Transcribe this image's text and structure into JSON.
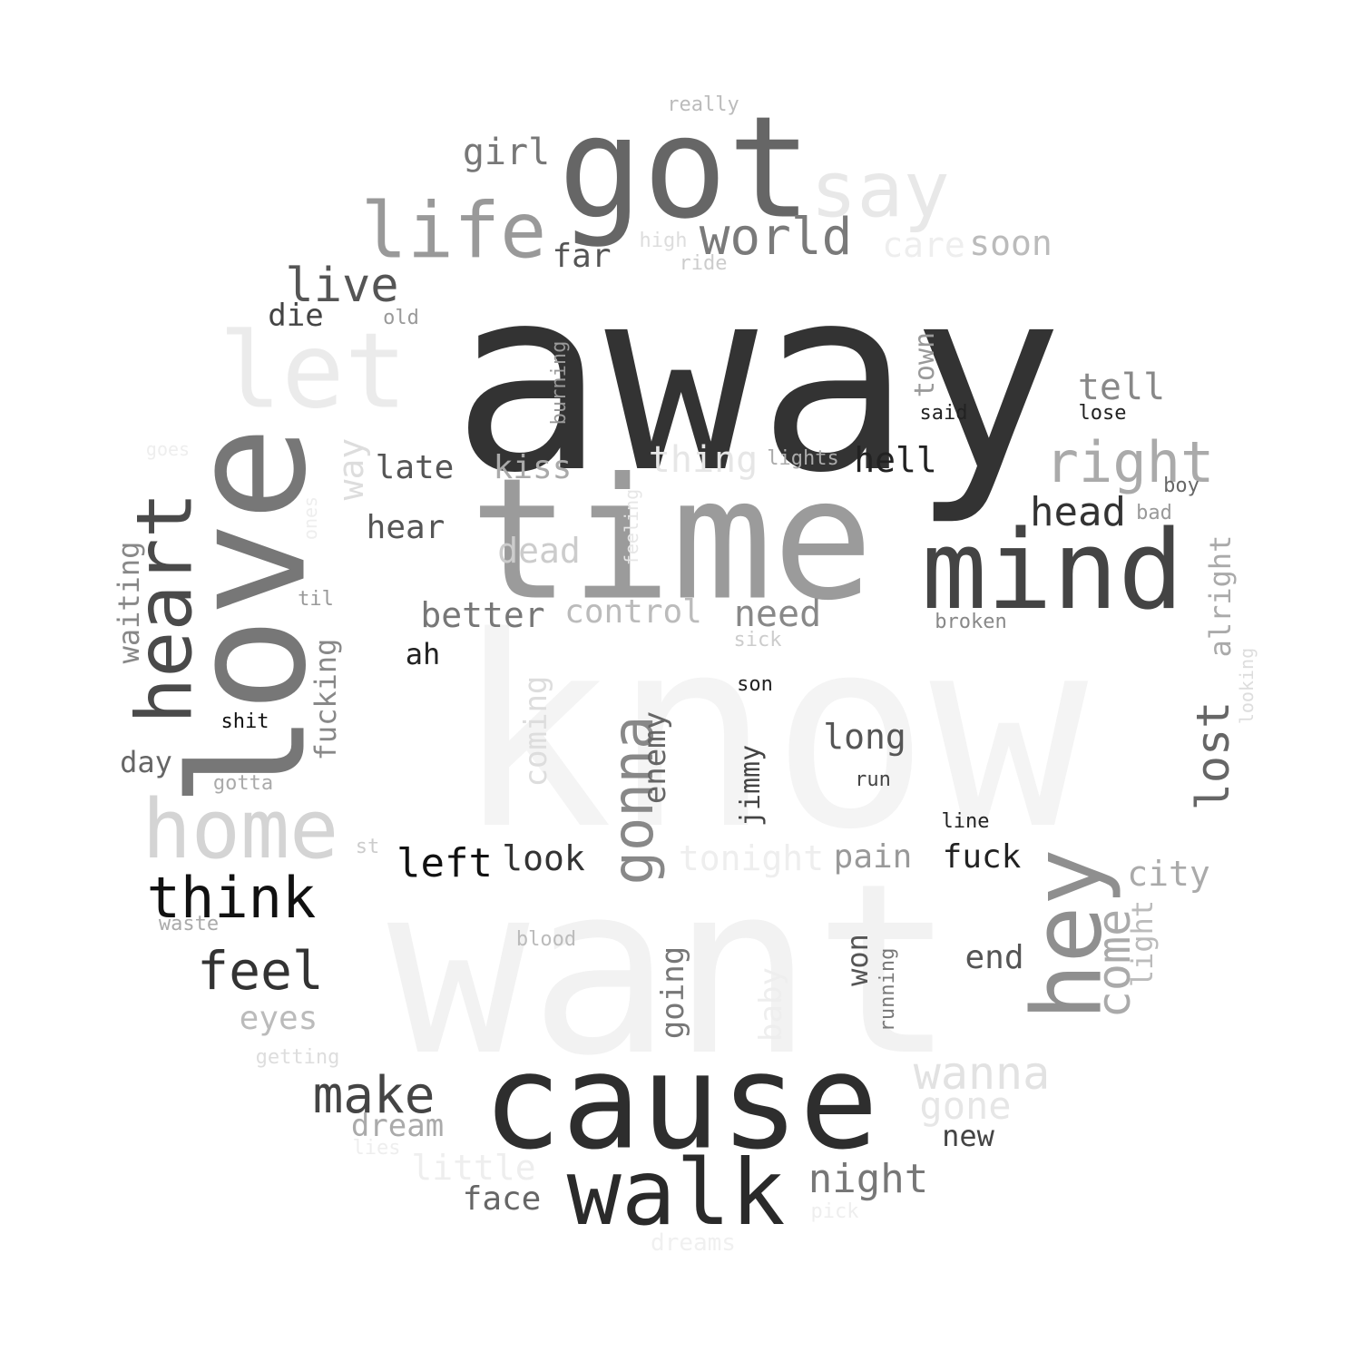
{
  "words": [
    {
      "text": "know",
      "color": "#f4f4f4"
    },
    {
      "text": "want",
      "color": "#f2f2f2"
    },
    {
      "text": "away",
      "color": "#333333"
    },
    {
      "text": "time",
      "color": "#9b9b9b"
    },
    {
      "text": "love",
      "color": "#777777"
    },
    {
      "text": "cause",
      "color": "#2e2e2e"
    },
    {
      "text": "got",
      "color": "#666666"
    },
    {
      "text": "mind",
      "color": "#444444"
    },
    {
      "text": "hey",
      "color": "#8f8f8f"
    },
    {
      "text": "walk",
      "color": "#2a2a2a"
    },
    {
      "text": "life",
      "color": "#999999"
    },
    {
      "text": "let",
      "color": "#ebebeb"
    },
    {
      "text": "heart",
      "color": "#4a4a4a"
    },
    {
      "text": "home",
      "color": "#d4d4d4"
    },
    {
      "text": "say",
      "color": "#e8e8e8"
    },
    {
      "text": "right",
      "color": "#aaaaaa"
    },
    {
      "text": "world",
      "color": "#7a7a7a"
    },
    {
      "text": "think",
      "color": "#111111"
    },
    {
      "text": "feel",
      "color": "#333333"
    },
    {
      "text": "make",
      "color": "#444444"
    },
    {
      "text": "wanna",
      "color": "#e2e2e2"
    },
    {
      "text": "live",
      "color": "#555555"
    },
    {
      "text": "gonna",
      "color": "#888888"
    },
    {
      "text": "come",
      "color": "#aaaaaa"
    },
    {
      "text": "lost",
      "color": "#666666"
    },
    {
      "text": "head",
      "color": "#333333"
    },
    {
      "text": "night",
      "color": "#777777"
    },
    {
      "text": "tell",
      "color": "#888888"
    },
    {
      "text": "need",
      "color": "#888888"
    },
    {
      "text": "better",
      "color": "#777777"
    },
    {
      "text": "control",
      "color": "#bbbbbb"
    },
    {
      "text": "dead",
      "color": "#cccccc"
    },
    {
      "text": "kiss",
      "color": "#aaaaaa"
    },
    {
      "text": "thing",
      "color": "#e6e6e6"
    },
    {
      "text": "late",
      "color": "#555555"
    },
    {
      "text": "hell",
      "color": "#222222"
    },
    {
      "text": "hear",
      "color": "#555555"
    },
    {
      "text": "way",
      "color": "#dddddd"
    },
    {
      "text": "left",
      "color": "#111111"
    },
    {
      "text": "look",
      "color": "#333333"
    },
    {
      "text": "long",
      "color": "#555555"
    },
    {
      "text": "tonight",
      "color": "#eeeeee"
    },
    {
      "text": "pain",
      "color": "#999999"
    },
    {
      "text": "fuck",
      "color": "#222222"
    },
    {
      "text": "city",
      "color": "#aaaaaa"
    },
    {
      "text": "end",
      "color": "#555555"
    },
    {
      "text": "gone",
      "color": "#e6e6e6"
    },
    {
      "text": "little",
      "color": "#eeeeee"
    },
    {
      "text": "face",
      "color": "#666666"
    },
    {
      "text": "eyes",
      "color": "#bbbbbb"
    },
    {
      "text": "dream",
      "color": "#aaaaaa"
    },
    {
      "text": "new",
      "color": "#444444"
    },
    {
      "text": "girl",
      "color": "#777777"
    },
    {
      "text": "far",
      "color": "#555555"
    },
    {
      "text": "soon",
      "color": "#bbbbbb"
    },
    {
      "text": "care",
      "color": "#eeeeee"
    },
    {
      "text": "die",
      "color": "#444444"
    },
    {
      "text": "waiting",
      "color": "#888888"
    },
    {
      "text": "fucking",
      "color": "#888888"
    },
    {
      "text": "day",
      "color": "#666666"
    },
    {
      "text": "coming",
      "color": "#dddddd"
    },
    {
      "text": "enemy",
      "color": "#666666"
    },
    {
      "text": "jimmy",
      "color": "#444444"
    },
    {
      "text": "town",
      "color": "#999999"
    },
    {
      "text": "going",
      "color": "#777777"
    },
    {
      "text": "won",
      "color": "#555555"
    },
    {
      "text": "light",
      "color": "#bbbbbb"
    },
    {
      "text": "alright",
      "color": "#aaaaaa"
    },
    {
      "text": "ah",
      "color": "#222222"
    },
    {
      "text": "really",
      "color": "#bbbbbb"
    },
    {
      "text": "high",
      "color": "#dddddd"
    },
    {
      "text": "ride",
      "color": "#cccccc"
    },
    {
      "text": "old",
      "color": "#999999"
    },
    {
      "text": "said",
      "color": "#222222"
    },
    {
      "text": "lose",
      "color": "#222222"
    },
    {
      "text": "lights",
      "color": "#aaaaaa"
    },
    {
      "text": "boy",
      "color": "#666666"
    },
    {
      "text": "bad",
      "color": "#999999"
    },
    {
      "text": "broken",
      "color": "#888888"
    },
    {
      "text": "sick",
      "color": "#cccccc"
    },
    {
      "text": "son",
      "color": "#222222"
    },
    {
      "text": "run",
      "color": "#444444"
    },
    {
      "text": "line",
      "color": "#222222"
    },
    {
      "text": "shit",
      "color": "#111111"
    },
    {
      "text": "til",
      "color": "#999999"
    },
    {
      "text": "gotta",
      "color": "#aaaaaa"
    },
    {
      "text": "st",
      "color": "#cccccc"
    },
    {
      "text": "waste",
      "color": "#aaaaaa"
    },
    {
      "text": "blood",
      "color": "#bbbbbb"
    },
    {
      "text": "getting",
      "color": "#dddddd"
    },
    {
      "text": "lies",
      "color": "#eeeeee"
    },
    {
      "text": "pick",
      "color": "#eeeeee"
    },
    {
      "text": "dreams",
      "color": "#f0f0f0"
    },
    {
      "text": "goes",
      "color": "#eeeeee"
    },
    {
      "text": "ones",
      "color": "#eeeeee"
    },
    {
      "text": "feeling",
      "color": "#e6e6e6"
    },
    {
      "text": "burning",
      "color": "#999999"
    },
    {
      "text": "looking",
      "color": "#dddddd"
    },
    {
      "text": "running",
      "color": "#777777"
    },
    {
      "text": "baby",
      "color": "#eeeeee"
    }
  ]
}
